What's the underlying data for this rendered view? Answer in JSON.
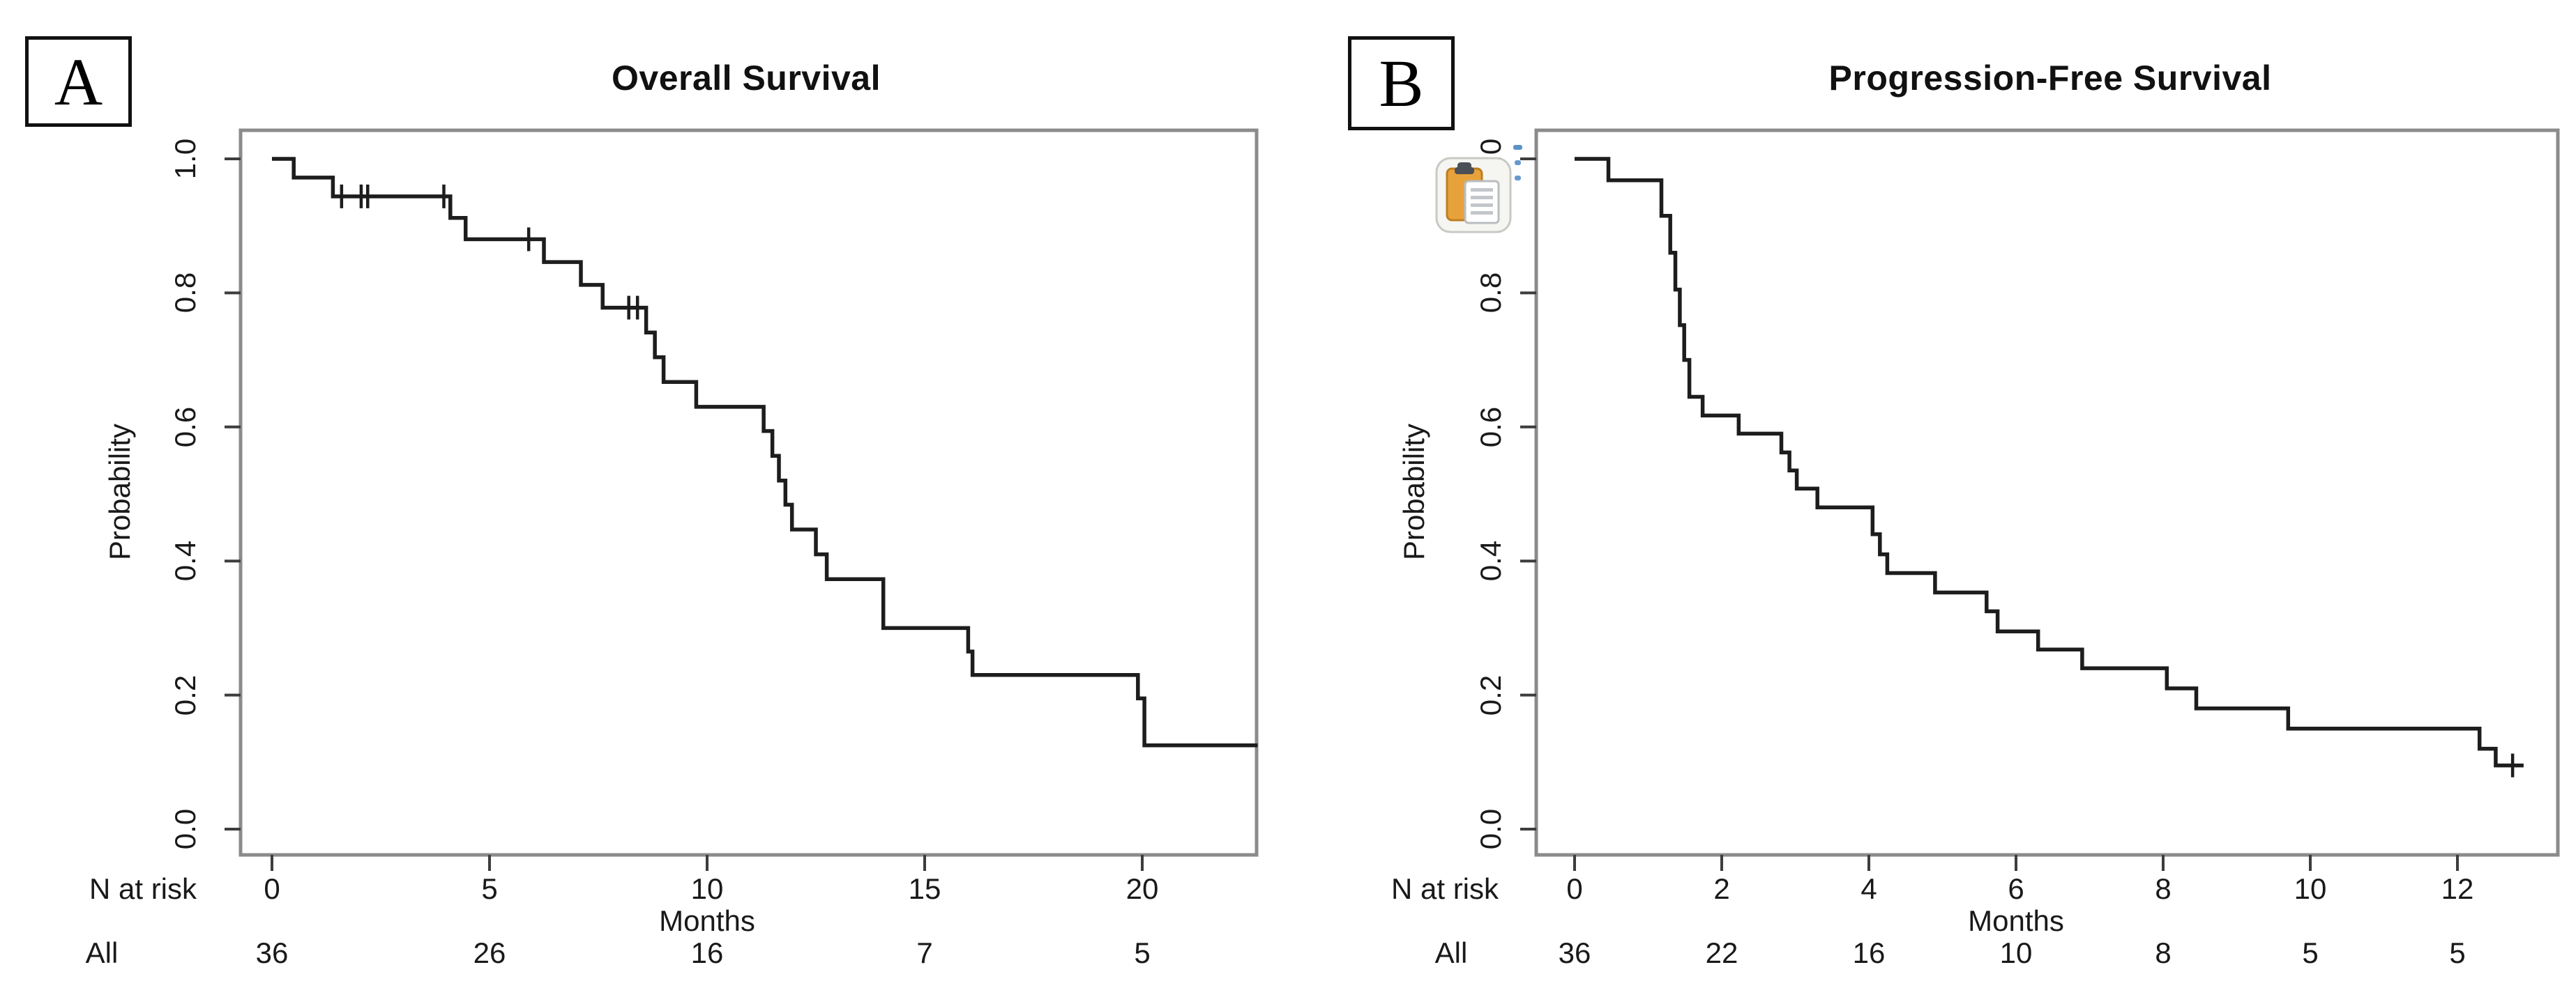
{
  "figure": {
    "background": "#ffffff",
    "curve_color": "#1d1d1d",
    "box_border_color": "#8b8b8b",
    "tick_color": "#3d3d3d",
    "text_color": "#191919"
  },
  "paste_button": {
    "icon": "clipboard-paste-icon",
    "button_bg": "#f5f5f2",
    "button_border": "#c9c9c4",
    "clipboard_color": "#e8a23c",
    "clipboard_edge": "#bd7f20",
    "clip_color": "#4a5055",
    "page_color": "#ffffff",
    "page_line_color": "#c3c7cb",
    "artifact_color": "#3f7fc1"
  },
  "chart_data": [
    {
      "type": "line",
      "subtype": "kaplan-meier-step",
      "panel_letter": "A",
      "title": "Overall Survival",
      "xlabel": "Months",
      "ylabel": "Probability",
      "x_ticks": [
        0,
        5,
        10,
        15,
        20
      ],
      "y_ticks": [
        "1.0",
        "0.8",
        "0.6",
        "0.4",
        "0.2",
        "0.0"
      ],
      "xlim": [
        -0.7,
        22.65
      ],
      "ylim": [
        -0.04,
        1.04
      ],
      "grid": false,
      "legend": null,
      "survival_steps": [
        [
          0,
          1.0
        ],
        [
          0.5,
          0.972
        ],
        [
          1.4,
          0.944
        ],
        [
          4.1,
          0.912
        ],
        [
          4.45,
          0.88
        ],
        [
          6.25,
          0.846
        ],
        [
          7.1,
          0.812
        ],
        [
          7.6,
          0.778
        ],
        [
          8.6,
          0.741
        ],
        [
          8.8,
          0.704
        ],
        [
          9.0,
          0.667
        ],
        [
          9.75,
          0.63
        ],
        [
          11.3,
          0.594
        ],
        [
          11.5,
          0.557
        ],
        [
          11.65,
          0.52
        ],
        [
          11.8,
          0.484
        ],
        [
          11.95,
          0.447
        ],
        [
          12.5,
          0.41
        ],
        [
          12.75,
          0.373
        ],
        [
          14.05,
          0.3
        ],
        [
          16.0,
          0.265
        ],
        [
          16.1,
          0.23
        ],
        [
          19.9,
          0.195
        ],
        [
          20.05,
          0.125
        ],
        [
          22.65,
          0.125
        ]
      ],
      "censor_marks": [
        [
          1.6,
          0.944
        ],
        [
          2.05,
          0.944
        ],
        [
          2.2,
          0.944
        ],
        [
          3.95,
          0.944
        ],
        [
          5.9,
          0.88
        ],
        [
          8.2,
          0.778
        ],
        [
          8.4,
          0.778
        ]
      ],
      "n_at_risk": {
        "row_label": "N at risk",
        "group_label": "All",
        "times": [
          0,
          5,
          10,
          15,
          20
        ],
        "counts": [
          "36",
          "26",
          "16",
          "7",
          "5"
        ]
      }
    },
    {
      "type": "line",
      "subtype": "kaplan-meier-step",
      "panel_letter": "B",
      "title": "Progression-Free Survival",
      "xlabel": "Months",
      "ylabel": "Probability",
      "x_ticks": [
        0,
        2,
        4,
        6,
        8,
        10,
        12
      ],
      "y_ticks": [
        "1.0",
        "0.8",
        "0.6",
        "0.4",
        "0.2",
        "0.0"
      ],
      "xlim": [
        -0.5,
        13.35
      ],
      "ylim": [
        -0.04,
        1.04
      ],
      "grid": false,
      "legend": null,
      "survival_steps": [
        [
          0,
          1.0
        ],
        [
          0.46,
          0.968
        ],
        [
          1.18,
          0.915
        ],
        [
          1.3,
          0.86
        ],
        [
          1.37,
          0.805
        ],
        [
          1.43,
          0.752
        ],
        [
          1.49,
          0.7
        ],
        [
          1.56,
          0.645
        ],
        [
          1.74,
          0.617
        ],
        [
          2.23,
          0.59
        ],
        [
          2.81,
          0.562
        ],
        [
          2.92,
          0.535
        ],
        [
          3.02,
          0.508
        ],
        [
          3.3,
          0.48
        ],
        [
          4.05,
          0.44
        ],
        [
          4.15,
          0.41
        ],
        [
          4.25,
          0.382
        ],
        [
          4.9,
          0.353
        ],
        [
          5.6,
          0.325
        ],
        [
          5.75,
          0.295
        ],
        [
          6.3,
          0.268
        ],
        [
          6.9,
          0.24
        ],
        [
          8.05,
          0.21
        ],
        [
          8.45,
          0.18
        ],
        [
          9.7,
          0.15
        ],
        [
          12.3,
          0.12
        ],
        [
          12.52,
          0.095
        ],
        [
          12.9,
          0.095
        ]
      ],
      "censor_marks": [
        [
          12.75,
          0.095
        ]
      ],
      "n_at_risk": {
        "row_label": "N at risk",
        "group_label": "All",
        "times": [
          0,
          2,
          4,
          6,
          8,
          10,
          12
        ],
        "counts": [
          "36",
          "22",
          "16",
          "10",
          "8",
          "5",
          "5"
        ]
      }
    }
  ]
}
